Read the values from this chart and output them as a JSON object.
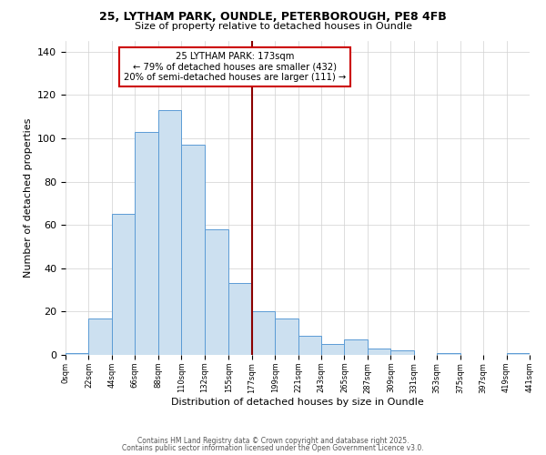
{
  "title1": "25, LYTHAM PARK, OUNDLE, PETERBOROUGH, PE8 4FB",
  "title2": "Size of property relative to detached houses in Oundle",
  "xlabel": "Distribution of detached houses by size in Oundle",
  "ylabel": "Number of detached properties",
  "bar_values": [
    1,
    17,
    65,
    103,
    113,
    97,
    58,
    33,
    20,
    17,
    9,
    5,
    7,
    3,
    2,
    0,
    1,
    0,
    0,
    1
  ],
  "bin_edges": [
    0,
    22,
    44,
    66,
    88,
    110,
    132,
    155,
    177,
    199,
    221,
    243,
    265,
    287,
    309,
    331,
    353,
    375,
    397,
    419,
    441
  ],
  "bin_labels": [
    "0sqm",
    "22sqm",
    "44sqm",
    "66sqm",
    "88sqm",
    "110sqm",
    "132sqm",
    "155sqm",
    "177sqm",
    "199sqm",
    "221sqm",
    "243sqm",
    "265sqm",
    "287sqm",
    "309sqm",
    "331sqm",
    "353sqm",
    "375sqm",
    "397sqm",
    "419sqm",
    "441sqm"
  ],
  "bar_color": "#cce0f0",
  "bar_edgecolor": "#5b9bd5",
  "vline_x": 177,
  "vline_color": "#8b0000",
  "ylim": [
    0,
    145
  ],
  "yticks": [
    0,
    20,
    40,
    60,
    80,
    100,
    120,
    140
  ],
  "annotation_title": "25 LYTHAM PARK: 173sqm",
  "annotation_line1": "← 79% of detached houses are smaller (432)",
  "annotation_line2": "20% of semi-detached houses are larger (111) →",
  "annotation_box_color": "#ffffff",
  "annotation_box_edgecolor": "#cc0000",
  "footer1": "Contains HM Land Registry data © Crown copyright and database right 2025.",
  "footer2": "Contains public sector information licensed under the Open Government Licence v3.0.",
  "background_color": "#ffffff",
  "grid_color": "#d0d0d0"
}
